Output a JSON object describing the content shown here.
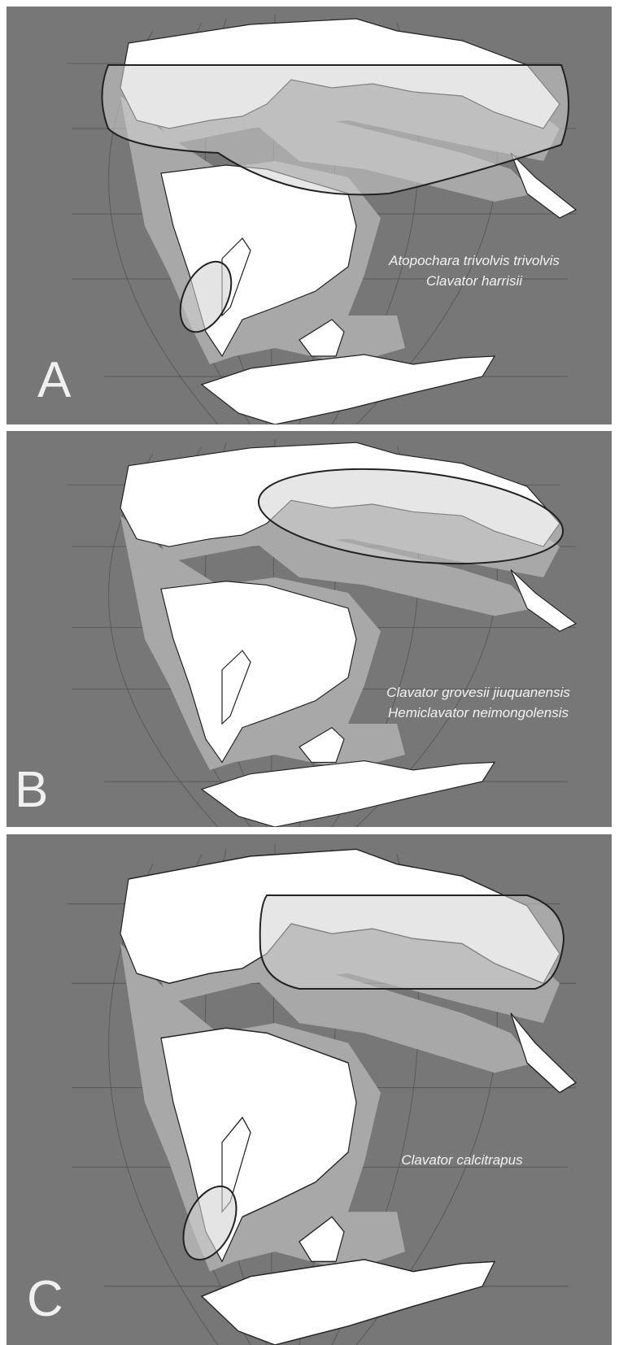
{
  "panels": [
    {
      "label": "A",
      "species": [
        "Atopochara trivolvis trivolvis",
        "Clavator harrisii"
      ]
    },
    {
      "label": "B",
      "species": [
        "Clavator grovesii jiuquanensis",
        "Hemiclavator neimongolensis"
      ]
    },
    {
      "label": "C",
      "species": [
        "Clavator calcitrapus"
      ]
    }
  ]
}
